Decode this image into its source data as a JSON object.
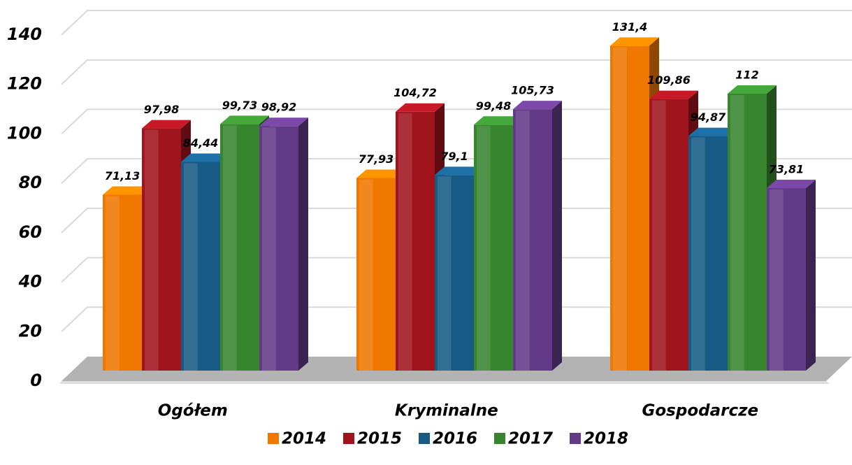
{
  "chart_data": {
    "type": "bar3d",
    "categories": [
      "Ogółem",
      "Kryminalne",
      "Gospodarcze"
    ],
    "series": [
      {
        "name": "2014",
        "color": "#f07800",
        "values": [
          71.13,
          77.93,
          131.4
        ],
        "value_labels": [
          "71,13",
          "77,93",
          "131,4"
        ]
      },
      {
        "name": "2015",
        "color": "#a0141e",
        "values": [
          97.98,
          104.72,
          109.86
        ],
        "value_labels": [
          "97,98",
          "104,72",
          "109,86"
        ]
      },
      {
        "name": "2016",
        "color": "#175a86",
        "values": [
          84.44,
          79.1,
          94.87
        ],
        "value_labels": [
          "84,44",
          "79,1",
          "94,87"
        ]
      },
      {
        "name": "2017",
        "color": "#37862f",
        "values": [
          99.73,
          99.48,
          112
        ],
        "value_labels": [
          "99,73",
          "99,48",
          "112"
        ]
      },
      {
        "name": "2018",
        "color": "#633a88",
        "values": [
          98.92,
          105.73,
          73.81
        ],
        "value_labels": [
          "98,92",
          "105,73",
          "73,81"
        ]
      }
    ],
    "ylim": [
      0,
      140
    ],
    "yticks": [
      0,
      20,
      40,
      60,
      80,
      100,
      120,
      140
    ],
    "grid": true,
    "legend": "bottom"
  }
}
